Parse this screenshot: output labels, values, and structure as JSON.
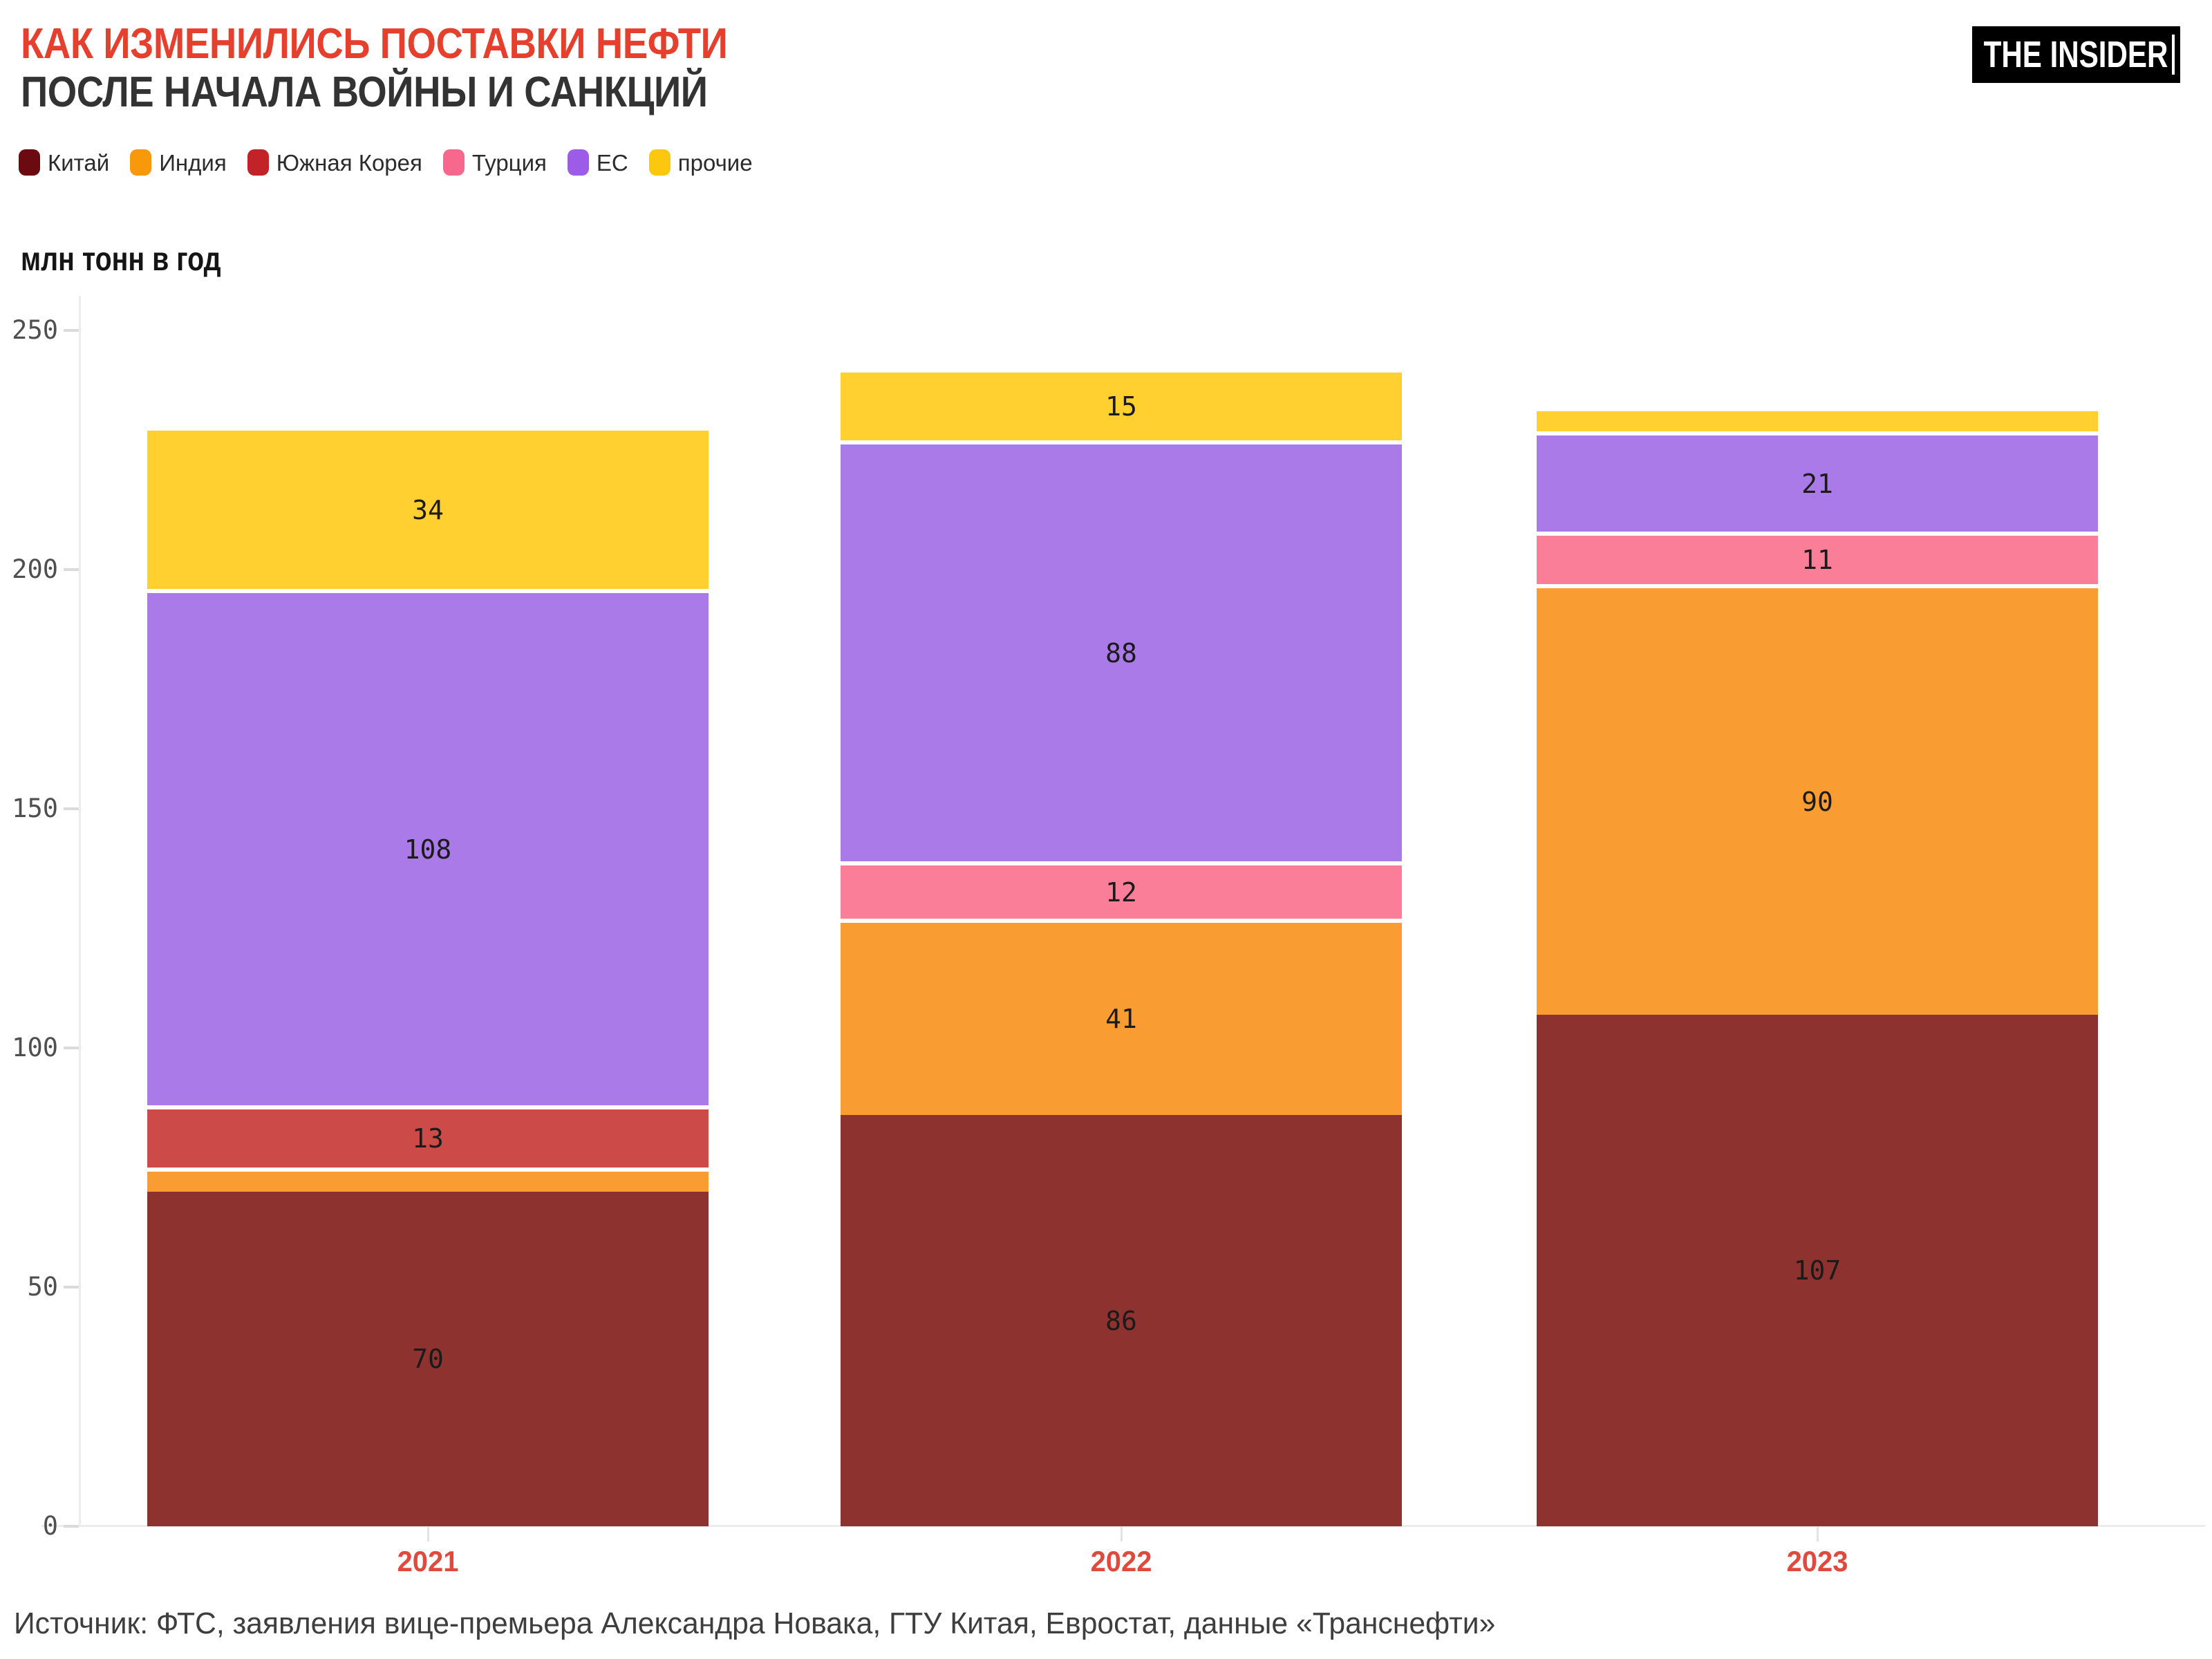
{
  "header": {
    "title_line1": "КАК ИЗМЕНИЛИСЬ ПОСТАВКИ НЕФТИ",
    "title_line2": "ПОСЛЕ НАЧАЛА ВОЙНЫ И САНКЦИЙ",
    "logo_text": "THE INSIDER"
  },
  "colors": {
    "title_accent": "#e5402e",
    "title_secondary": "#333333",
    "year_label": "#e04a3c",
    "axis_line": "#ececec",
    "tick_text": "#4f4f4f",
    "bar_label_text": "#1b1b1b",
    "logo_bg": "#000000",
    "logo_text": "#ffffff"
  },
  "footer": {
    "source": "Источник: ФТС, заявления вице-премьера Александра Новака, ГТУ Китая, Евростат, данные «Транснефти»"
  },
  "chart_data": {
    "type": "bar",
    "subtype": "stacked",
    "unit": "млн тонн в год",
    "categories": [
      "2021",
      "2022",
      "2023"
    ],
    "series": [
      {
        "name": "Китай",
        "legend_color": "#6b0a10",
        "bar_color": "#8d322f",
        "values": [
          70,
          86,
          107
        ]
      },
      {
        "name": "Индия",
        "legend_color": "#f8990b",
        "bar_color": "#f99d33",
        "values": [
          5,
          41,
          90
        ]
      },
      {
        "name": "Южная Корея",
        "legend_color": "#c22328",
        "bar_color": "#cc4b48",
        "values": [
          13,
          0,
          0
        ]
      },
      {
        "name": "Турция",
        "legend_color": "#f7678e",
        "bar_color": "#fa7e97",
        "values": [
          0,
          12,
          11
        ]
      },
      {
        "name": "ЕС",
        "legend_color": "#9c5ce8",
        "bar_color": "#a97ae8",
        "values": [
          108,
          88,
          21
        ]
      },
      {
        "name": "прочие",
        "legend_color": "#fbc70f",
        "bar_color": "#ffd02f",
        "values": [
          34,
          15,
          5
        ]
      }
    ],
    "totals": [
      230,
      242,
      234
    ],
    "ylim": [
      0,
      250
    ],
    "yticks": [
      0,
      50,
      100,
      150,
      200,
      250
    ],
    "grid": false,
    "legend_position": "top-left",
    "notes": "segment labels hidden for values below 10"
  }
}
